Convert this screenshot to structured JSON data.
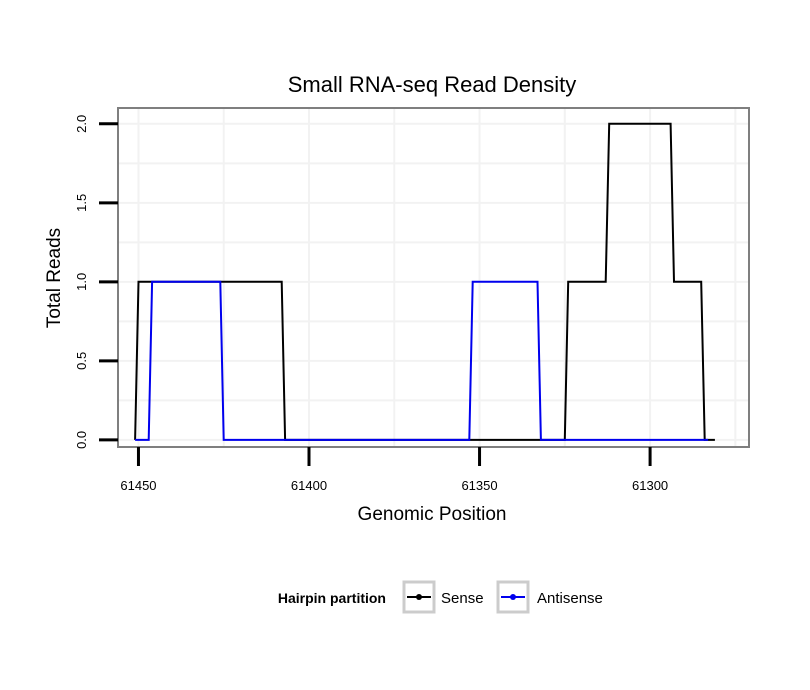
{
  "chart_data": {
    "type": "line",
    "title": "Small RNA-seq Read Density",
    "xlabel": "Genomic Position",
    "ylabel": "Total Reads",
    "xlim": [
      61456,
      61271
    ],
    "ylim": [
      -0.045,
      2.1
    ],
    "x_reversed": true,
    "grid": true,
    "x_ticks": [
      61450,
      61400,
      61350,
      61300
    ],
    "x_tick_labels": [
      "61450",
      "61400",
      "61350",
      "61300"
    ],
    "y_ticks": [
      0,
      0.5,
      1,
      1.5,
      2
    ],
    "y_tick_labels": [
      "0.0",
      "0.5",
      "1.0",
      "1.5",
      "2.0"
    ],
    "legend": {
      "title": "Hairpin partition",
      "position": "bottom",
      "entries": [
        "Sense",
        "Antisense"
      ]
    },
    "series": [
      {
        "name": "Sense",
        "color": "#000000",
        "points": [
          [
            61451,
            0
          ],
          [
            61450,
            1
          ],
          [
            61408,
            1
          ],
          [
            61407,
            0
          ],
          [
            61325,
            0
          ],
          [
            61324,
            1
          ],
          [
            61313,
            1
          ],
          [
            61312,
            2
          ],
          [
            61294,
            2
          ],
          [
            61293,
            1
          ],
          [
            61285,
            1
          ],
          [
            61284,
            0
          ],
          [
            61281,
            0
          ]
        ]
      },
      {
        "name": "Antisense",
        "color": "#0000ee",
        "points": [
          [
            61451,
            0
          ],
          [
            61447,
            0
          ],
          [
            61446,
            1
          ],
          [
            61426,
            1
          ],
          [
            61425,
            0
          ],
          [
            61353,
            0
          ],
          [
            61352,
            1
          ],
          [
            61333,
            1
          ],
          [
            61332,
            0
          ],
          [
            61283,
            0
          ]
        ]
      }
    ]
  }
}
